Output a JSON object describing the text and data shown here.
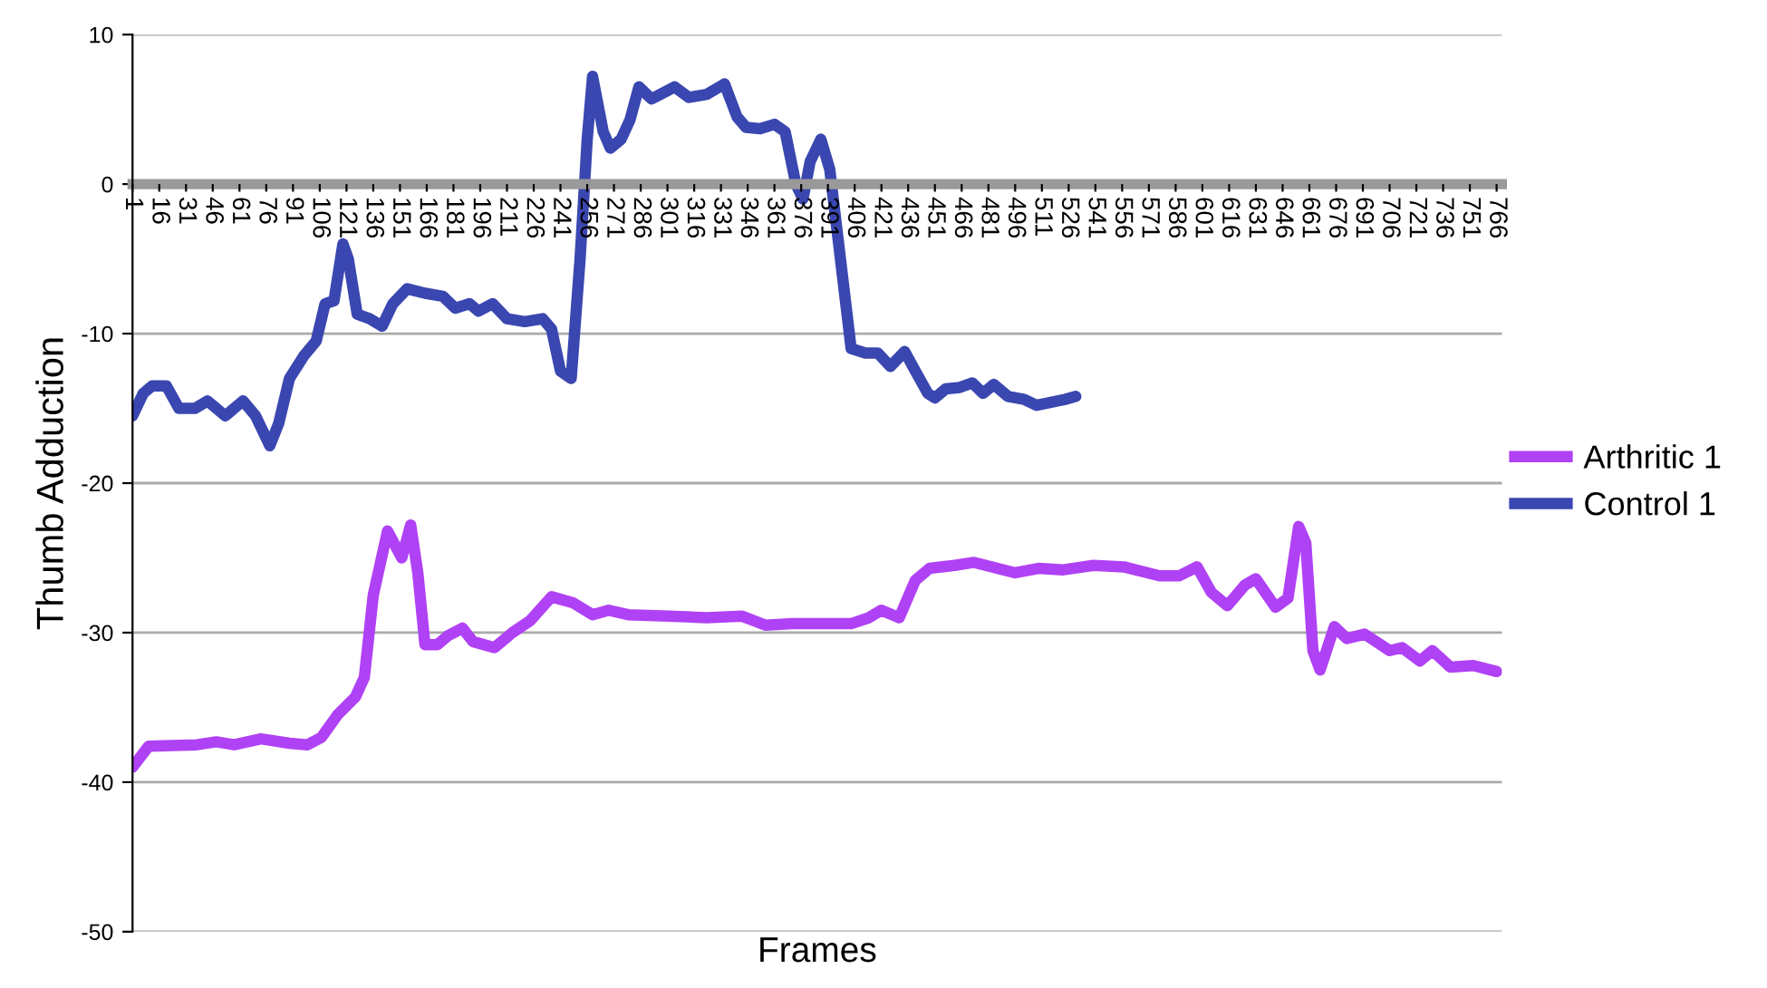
{
  "chart_data": {
    "type": "line",
    "xlabel": "Frames",
    "ylabel": "Thumb Adduction",
    "xlim": [
      1,
      769
    ],
    "xticks": [
      1,
      16,
      31,
      46,
      61,
      76,
      91,
      106,
      121,
      136,
      151,
      166,
      181,
      196,
      211,
      226,
      241,
      256,
      271,
      286,
      301,
      316,
      331,
      346,
      361,
      376,
      391,
      406,
      421,
      436,
      451,
      466,
      481,
      496,
      511,
      526,
      541,
      556,
      571,
      586,
      601,
      616,
      631,
      646,
      661,
      676,
      691,
      706,
      721,
      736,
      751,
      766
    ],
    "ylim": [
      -50,
      10
    ],
    "yticks": [
      -50,
      -40,
      -30,
      -20,
      -10,
      0,
      10
    ],
    "grid": "y",
    "legend": "right",
    "marker": "none",
    "line_style": "solid",
    "series": [
      {
        "name": "Arthritic 1",
        "color": "#b042f5",
        "x": [
          1,
          10,
          37,
          48,
          58,
          73,
          89,
          99,
          107,
          116,
          126,
          131,
          136,
          144,
          152,
          157,
          161,
          165,
          172,
          178,
          186,
          192,
          204,
          214,
          224,
          236,
          248,
          259,
          268,
          279,
          302,
          323,
          343,
          356,
          371,
          404,
          414,
          421,
          431,
          440,
          448,
          462,
          473,
          496,
          509,
          523,
          540,
          557,
          577,
          588,
          598,
          606,
          615,
          625,
          631,
          642,
          649,
          655,
          659,
          663,
          667,
          675,
          682,
          692,
          706,
          713,
          723,
          730,
          740,
          753,
          766
        ],
        "values": [
          -39.0,
          -37.6,
          -37.5,
          -37.3,
          -37.5,
          -37.1,
          -37.4,
          -37.5,
          -37.0,
          -35.5,
          -34.3,
          -33.0,
          -27.5,
          -23.2,
          -25.0,
          -22.8,
          -26.0,
          -30.8,
          -30.8,
          -30.2,
          -29.7,
          -30.6,
          -31.0,
          -30.0,
          -29.2,
          -27.6,
          -28.0,
          -28.8,
          -28.5,
          -28.8,
          -28.9,
          -29.0,
          -28.9,
          -29.5,
          -29.4,
          -29.4,
          -29.0,
          -28.5,
          -29.0,
          -26.5,
          -25.7,
          -25.5,
          -25.3,
          -26.0,
          -25.7,
          -25.8,
          -25.5,
          -25.6,
          -26.2,
          -26.2,
          -25.6,
          -27.3,
          -28.2,
          -26.8,
          -26.4,
          -28.3,
          -27.7,
          -22.9,
          -24.0,
          -31.2,
          -32.5,
          -29.6,
          -30.4,
          -30.1,
          -31.2,
          -31.0,
          -31.9,
          -31.2,
          -32.3,
          -32.2,
          -32.6
        ]
      },
      {
        "name": "Control 1",
        "color": "#3a47b0",
        "x": [
          1,
          7,
          12,
          20,
          27,
          36,
          43,
          53,
          58,
          63,
          70,
          78,
          83,
          89,
          97,
          104,
          109,
          114,
          119,
          122,
          127,
          134,
          141,
          147,
          155,
          165,
          175,
          182,
          190,
          195,
          203,
          211,
          221,
          231,
          236,
          241,
          247,
          252,
          256,
          259,
          265,
          269,
          275,
          280,
          285,
          292,
          297,
          305,
          313,
          323,
          333,
          340,
          345,
          353,
          361,
          367,
          373,
          377,
          381,
          387,
          392,
          397,
          404,
          412,
          419,
          426,
          434,
          440,
          447,
          451,
          457,
          465,
          472,
          478,
          484,
          492,
          501,
          508,
          516,
          524,
          530
        ],
        "values": [
          -15.5,
          -14.0,
          -13.5,
          -13.5,
          -15.0,
          -15.0,
          -14.5,
          -15.5,
          -15.0,
          -14.5,
          -15.5,
          -17.5,
          -16.0,
          -13.0,
          -11.5,
          -10.5,
          -8.0,
          -7.8,
          -4.0,
          -5.0,
          -8.7,
          -9.0,
          -9.5,
          -8.0,
          -7.0,
          -7.3,
          -7.5,
          -8.3,
          -8.0,
          -8.5,
          -8.0,
          -9.0,
          -9.2,
          -9.0,
          -9.7,
          -12.5,
          -13.0,
          -5.0,
          3.0,
          7.2,
          3.5,
          2.4,
          3.0,
          4.3,
          6.5,
          5.7,
          6.0,
          6.5,
          5.8,
          6.0,
          6.7,
          4.5,
          3.8,
          3.7,
          4.0,
          3.5,
          0.0,
          -1.0,
          1.5,
          3.0,
          1.0,
          -4.0,
          -11.0,
          -11.3,
          -11.3,
          -12.2,
          -11.2,
          -12.5,
          -14.0,
          -14.3,
          -13.7,
          -13.6,
          -13.3,
          -14.0,
          -13.4,
          -14.2,
          -14.4,
          -14.8,
          -14.6,
          -14.4,
          -14.2
        ]
      }
    ]
  }
}
